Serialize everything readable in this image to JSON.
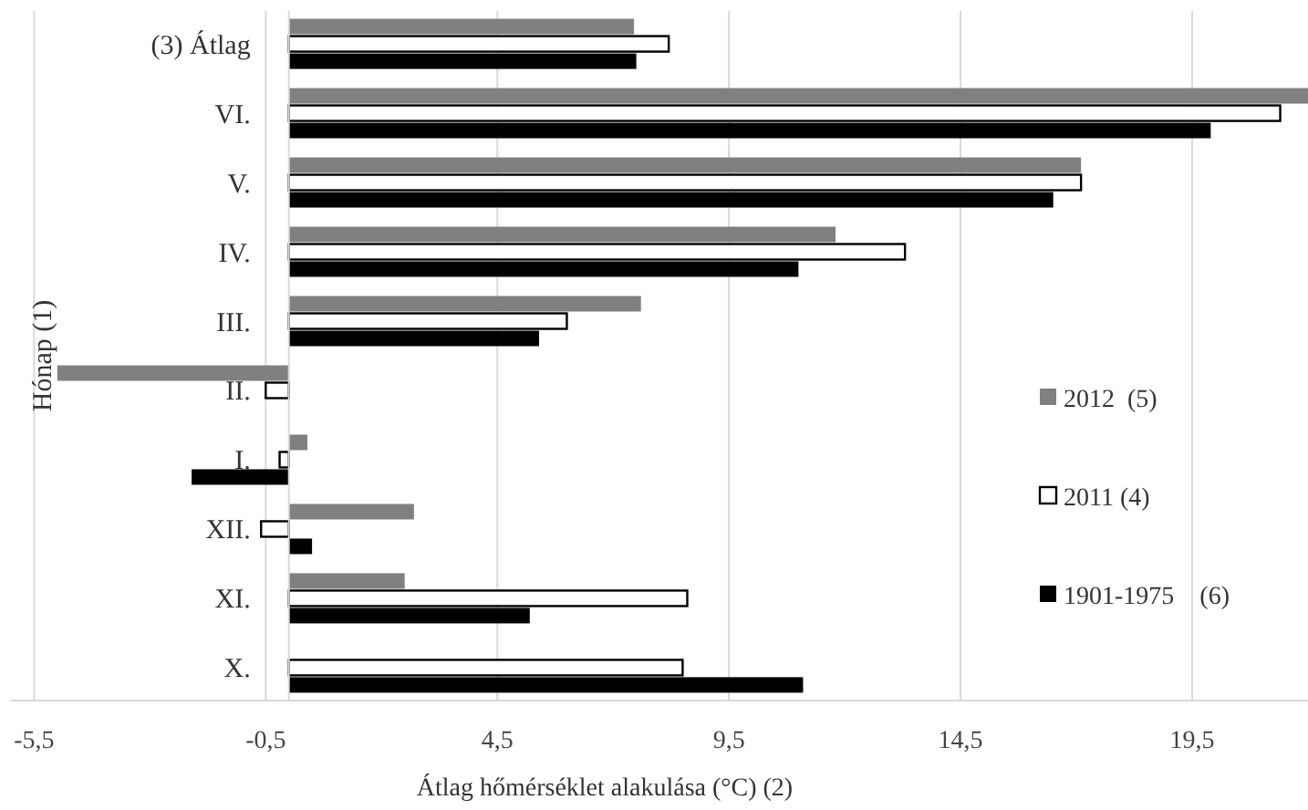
{
  "chart_data": {
    "type": "bar",
    "orientation": "horizontal",
    "xlabel": "Átlag hőmérséklet alakulása (°C) (2)",
    "ylabel": "Hónap (1)",
    "categories": [
      "(3) Átlag",
      "VI.",
      "V.",
      "IV.",
      "III.",
      "II.",
      "I.",
      "XII.",
      "XI.",
      "X."
    ],
    "series": [
      {
        "name": "2012  (5)",
        "color": "#808080",
        "values": [
          7.45,
          22.0,
          17.1,
          11.8,
          7.6,
          -5.0,
          0.4,
          2.7,
          2.5,
          null
        ]
      },
      {
        "name": "2011 (4)",
        "color": "#ffffff",
        "values": [
          8.2,
          21.4,
          17.1,
          13.3,
          6.0,
          -0.5,
          -0.2,
          -0.6,
          8.6,
          8.5
        ]
      },
      {
        "name": "1901-1975    (6)",
        "color": "#000000",
        "values": [
          7.5,
          19.9,
          16.5,
          11.0,
          5.4,
          null,
          -2.1,
          0.5,
          5.2,
          11.1
        ]
      }
    ],
    "xlim": [
      -6,
      22
    ],
    "xticks": [
      {
        "value": -5.5,
        "label": "-5,5"
      },
      {
        "value": -0.5,
        "label": "-0,5"
      },
      {
        "value": 4.5,
        "label": "4,5"
      },
      {
        "value": 9.5,
        "label": "9,5"
      },
      {
        "value": 14.5,
        "label": "14,5"
      },
      {
        "value": 19.5,
        "label": "19,5"
      }
    ],
    "grid": "x",
    "legend": "right"
  }
}
